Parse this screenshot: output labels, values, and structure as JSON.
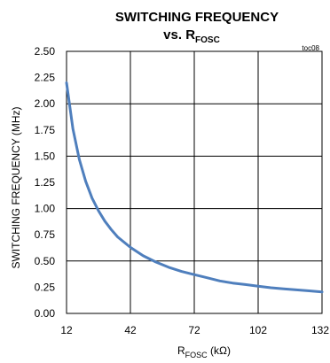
{
  "chart_data": {
    "type": "line",
    "title": "SWITCHING FREQUENCY",
    "subtitle": {
      "prefix": "vs. R",
      "subscript": "FOSC"
    },
    "figure_tag": "toc08",
    "xlabel": {
      "prefix": "R",
      "subscript": "FOSC",
      "suffix": " (kΩ)"
    },
    "ylabel": "SWITCHING FREQUENCY (MHz)",
    "xlim": [
      12,
      132
    ],
    "ylim": [
      0,
      2.5
    ],
    "x_ticks": [
      12,
      42,
      72,
      102,
      132
    ],
    "y_ticks": [
      0.0,
      0.25,
      0.5,
      0.75,
      1.0,
      1.25,
      1.5,
      1.75,
      2.0,
      2.25,
      2.5
    ],
    "x_tick_labels": [
      "12",
      "42",
      "72",
      "102",
      "132"
    ],
    "y_tick_labels": [
      "0.00",
      "0.25",
      "0.50",
      "0.75",
      "1.00",
      "1.25",
      "1.50",
      "1.75",
      "2.00",
      "2.25",
      "2.50"
    ],
    "grid": true,
    "series": [
      {
        "color": "#4f7fbd",
        "x": [
          12,
          15,
          18,
          21,
          24,
          27,
          30,
          33,
          36,
          39,
          42,
          48,
          54,
          60,
          66,
          72,
          78,
          84,
          90,
          96,
          102,
          108,
          114,
          120,
          126,
          132
        ],
        "y": [
          2.2,
          1.76,
          1.47,
          1.26,
          1.1,
          0.98,
          0.88,
          0.8,
          0.73,
          0.68,
          0.63,
          0.55,
          0.49,
          0.44,
          0.4,
          0.37,
          0.34,
          0.31,
          0.29,
          0.275,
          0.26,
          0.245,
          0.235,
          0.225,
          0.215,
          0.205
        ]
      }
    ]
  }
}
